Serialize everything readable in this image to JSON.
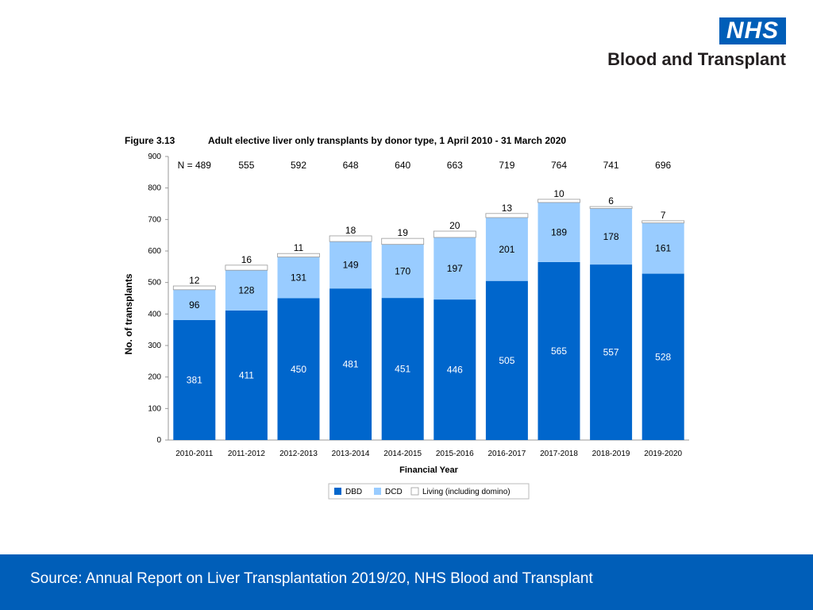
{
  "logo": {
    "mark": "NHS",
    "subtitle": "Blood and Transplant"
  },
  "figure": {
    "number": "Figure 3.13",
    "title": "Adult elective liver only transplants by donor type, 1 April 2010 - 31 March 2020"
  },
  "footer": {
    "source": "Source: Annual Report on Liver Transplantation 2019/20, NHS Blood and Transplant"
  },
  "colors": {
    "dbd": "#0066cc",
    "dcd": "#99ccff",
    "living": "#ffffff",
    "brand": "#005eb8"
  },
  "chart_data": {
    "type": "bar",
    "stacked": true,
    "categories": [
      "2010-2011",
      "2011-2012",
      "2012-2013",
      "2013-2014",
      "2014-2015",
      "2015-2016",
      "2016-2017",
      "2017-2018",
      "2018-2019",
      "2019-2020"
    ],
    "series": [
      {
        "name": "DBD",
        "values": [
          381,
          411,
          450,
          481,
          451,
          446,
          505,
          565,
          557,
          528
        ]
      },
      {
        "name": "DCD",
        "values": [
          96,
          128,
          131,
          149,
          170,
          197,
          201,
          189,
          178,
          161
        ]
      },
      {
        "name": "Living (including domino)",
        "values": [
          12,
          16,
          11,
          18,
          19,
          20,
          13,
          10,
          6,
          7
        ]
      }
    ],
    "totals_prefix": "N = ",
    "totals": [
      489,
      555,
      592,
      648,
      640,
      663,
      719,
      764,
      741,
      696
    ],
    "xlabel": "Financial Year",
    "ylabel": "No. of transplants",
    "ylim": [
      0,
      900
    ],
    "yticks": [
      0,
      100,
      200,
      300,
      400,
      500,
      600,
      700,
      800,
      900
    ],
    "legend_position": "bottom"
  }
}
